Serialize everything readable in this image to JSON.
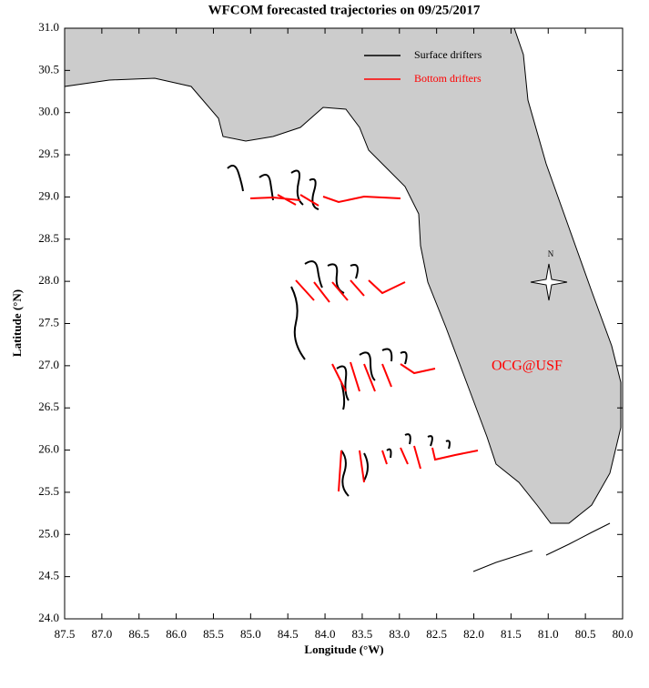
{
  "chart_data": {
    "type": "map",
    "title": "WFCOM forecasted trajectories on 09/25/2017",
    "x_label": "Longitude (°W)",
    "y_label": "Latitude (°N)",
    "xlim": [
      87.5,
      80
    ],
    "ylim": [
      24,
      31
    ],
    "xticks": [
      87.5,
      {
        "value": 87,
        "label": "87.0"
      },
      86.5,
      {
        "value": 86,
        "label": "86.0"
      },
      85.5,
      {
        "value": 85,
        "label": "85.0"
      },
      84.5,
      {
        "value": 84,
        "label": "84.0"
      },
      83.5,
      {
        "value": 83,
        "label": "83.0"
      },
      82.5,
      {
        "value": 82,
        "label": "82.0"
      },
      81.5,
      {
        "value": 81,
        "label": "81.0"
      },
      80.5,
      {
        "value": 80,
        "label": "80.0"
      }
    ],
    "yticks": [
      {
        "value": 31,
        "label": "31.0"
      },
      30.5,
      {
        "value": 30,
        "label": "30.0"
      },
      29.5,
      {
        "value": 29,
        "label": "29.0"
      },
      28.5,
      {
        "value": 28,
        "label": "28.0"
      },
      27.5,
      {
        "value": 27,
        "label": "27.0"
      },
      26.5,
      {
        "value": 26,
        "label": "26.0"
      },
      25.5,
      {
        "value": 25,
        "label": "25.0"
      },
      24.5,
      {
        "value": 24,
        "label": "24.0"
      }
    ],
    "series": [
      {
        "name": "Surface drifters",
        "color": "#000000"
      },
      {
        "name": "Bottom drifters",
        "color": "#ff0000"
      }
    ],
    "land_color": "#cccccc",
    "annotation": "OCG@USF",
    "compass_label": "N"
  }
}
